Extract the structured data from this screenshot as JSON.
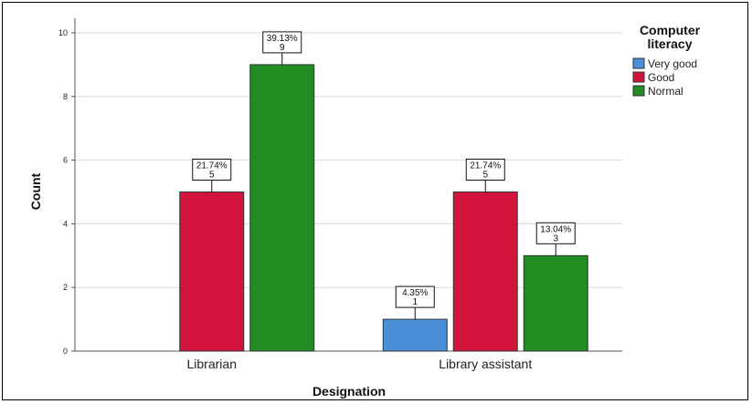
{
  "chart_data": {
    "type": "bar",
    "xlabel": "Designation",
    "ylabel": "Count",
    "ylim": [
      0,
      10
    ],
    "yticks": [
      0,
      2,
      4,
      6,
      8,
      10
    ],
    "grid": true,
    "legend_placement": "top-right",
    "legend_title": [
      "Computer",
      "literacy"
    ],
    "categories": [
      "Librarian",
      "Library assistant"
    ],
    "series": [
      {
        "name": "Very good",
        "color": "#4a90d9",
        "values": [
          0,
          1
        ],
        "percent_labels": [
          "",
          "4.35%"
        ],
        "count_labels": [
          "",
          "1"
        ]
      },
      {
        "name": "Good",
        "color": "#d2143c",
        "values": [
          5,
          5
        ],
        "percent_labels": [
          "21.74%",
          "21.74%"
        ],
        "count_labels": [
          "5",
          "5"
        ]
      },
      {
        "name": "Normal",
        "color": "#228b22",
        "values": [
          9,
          3
        ],
        "percent_labels": [
          "39.13%",
          "13.04%"
        ],
        "count_labels": [
          "9",
          "3"
        ]
      }
    ]
  }
}
